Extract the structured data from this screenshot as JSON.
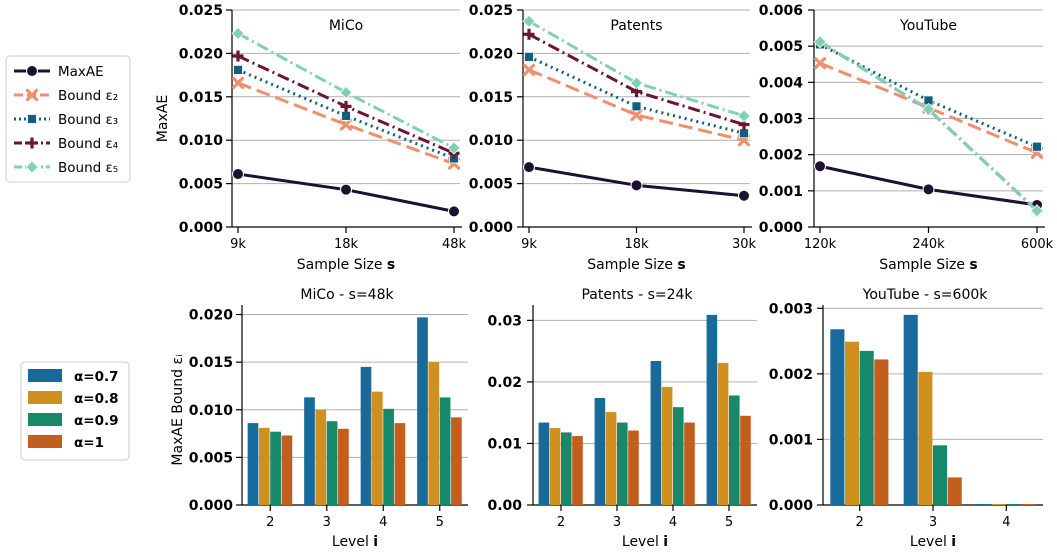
{
  "line_legend": [
    {
      "label": "MaxAE",
      "color": "#1d1130",
      "marker": "circle",
      "dash": ""
    },
    {
      "label": "Bound ε₂",
      "color": "#f08f6e",
      "marker": "x",
      "dash": "14,6"
    },
    {
      "label": "Bound ε₃",
      "color": "#115f7c",
      "marker": "square",
      "dash": "2,4"
    },
    {
      "label": "Bound ε₄",
      "color": "#6c1531",
      "marker": "plus",
      "dash": "12,4,2,4"
    },
    {
      "label": "Bound ε₅",
      "color": "#7fd1b2",
      "marker": "diamond",
      "dash": "12,4,2,4"
    }
  ],
  "bar_legend": [
    {
      "label": "α=0.7",
      "color": "#186a9a"
    },
    {
      "label": "α=0.8",
      "color": "#cf9020"
    },
    {
      "label": "α=0.9",
      "color": "#16896a"
    },
    {
      "label": "α=1",
      "color": "#c15f1f"
    }
  ],
  "chart_data": [
    {
      "type": "line",
      "title": "MiCo",
      "xlabel": "Sample Size s",
      "ylabel": "MaxAE",
      "categories": [
        "9k",
        "18k",
        "48k"
      ],
      "ylim": [
        0,
        0.025
      ],
      "yticks": [
        "0.000",
        "0.005",
        "0.010",
        "0.015",
        "0.020",
        "0.025"
      ],
      "series": [
        {
          "name": "MaxAE",
          "values": [
            0.0061,
            0.0043,
            0.0018
          ]
        },
        {
          "name": "Bound ε₂",
          "values": [
            0.0166,
            0.0118,
            0.0073
          ]
        },
        {
          "name": "Bound ε₃",
          "values": [
            0.0181,
            0.0128,
            0.0079
          ]
        },
        {
          "name": "Bound ε₄",
          "values": [
            0.0197,
            0.0139,
            0.0085
          ]
        },
        {
          "name": "Bound ε₅",
          "values": [
            0.0223,
            0.0155,
            0.0091
          ]
        }
      ]
    },
    {
      "type": "line",
      "title": "Patents",
      "xlabel": "Sample Size s",
      "ylabel": "",
      "categories": [
        "9k",
        "18k",
        "30k"
      ],
      "ylim": [
        0,
        0.025
      ],
      "yticks": [
        "0.000",
        "0.005",
        "0.010",
        "0.015",
        "0.020",
        "0.025"
      ],
      "series": [
        {
          "name": "MaxAE",
          "values": [
            0.0069,
            0.0048,
            0.0036
          ]
        },
        {
          "name": "Bound ε₂",
          "values": [
            0.0181,
            0.0129,
            0.01
          ]
        },
        {
          "name": "Bound ε₃",
          "values": [
            0.0196,
            0.0139,
            0.0108
          ]
        },
        {
          "name": "Bound ε₄",
          "values": [
            0.0222,
            0.0156,
            0.0118
          ]
        },
        {
          "name": "Bound ε₅",
          "values": [
            0.0237,
            0.0166,
            0.0128
          ]
        }
      ]
    },
    {
      "type": "line",
      "title": "YouTube",
      "xlabel": "Sample Size s",
      "ylabel": "",
      "categories": [
        "120k",
        "240k",
        "600k"
      ],
      "ylim": [
        0,
        0.006
      ],
      "yticks": [
        "0.000",
        "0.001",
        "0.002",
        "0.003",
        "0.004",
        "0.005",
        "0.006"
      ],
      "series": [
        {
          "name": "MaxAE",
          "values": [
            0.00168,
            0.00104,
            0.00061
          ]
        },
        {
          "name": "Bound ε₂",
          "values": [
            0.00453,
            0.0033,
            0.00205
          ]
        },
        {
          "name": "Bound ε₃",
          "values": [
            0.00505,
            0.0035,
            0.00222
          ]
        },
        {
          "name": "Bound ε₄",
          "values": [
            0.00512,
            0.00325,
            0.00045
          ]
        },
        {
          "name": "Bound ε₅",
          "values": [
            0.00512,
            0.00325,
            0.00045
          ]
        }
      ]
    },
    {
      "type": "bar",
      "title": "MiCo - s=48k",
      "xlabel": "Level i",
      "ylabel": "MaxAE Bound εᵢ",
      "categories": [
        "2",
        "3",
        "4",
        "5"
      ],
      "ylim": [
        0,
        0.021
      ],
      "yticks": [
        "0.000",
        "0.005",
        "0.010",
        "0.015",
        "0.020"
      ],
      "series": [
        {
          "name": "α=0.7",
          "values": [
            0.0086,
            0.0113,
            0.0145,
            0.0197
          ]
        },
        {
          "name": "α=0.8",
          "values": [
            0.0081,
            0.01,
            0.0119,
            0.015
          ]
        },
        {
          "name": "α=0.9",
          "values": [
            0.0077,
            0.0088,
            0.0101,
            0.0113
          ]
        },
        {
          "name": "α=1",
          "values": [
            0.0073,
            0.008,
            0.0086,
            0.0092
          ]
        }
      ]
    },
    {
      "type": "bar",
      "title": "Patents - s=24k",
      "xlabel": "Level i",
      "ylabel": "",
      "categories": [
        "2",
        "3",
        "4",
        "5"
      ],
      "ylim": [
        0,
        0.0325
      ],
      "yticks": [
        "0.00",
        "0.01",
        "0.02",
        "0.03"
      ],
      "series": [
        {
          "name": "α=0.7",
          "values": [
            0.0134,
            0.0174,
            0.0234,
            0.0309
          ]
        },
        {
          "name": "α=0.8",
          "values": [
            0.0125,
            0.0151,
            0.0192,
            0.0231
          ]
        },
        {
          "name": "α=0.9",
          "values": [
            0.0118,
            0.0134,
            0.0159,
            0.0178
          ]
        },
        {
          "name": "α=1",
          "values": [
            0.0112,
            0.0121,
            0.0134,
            0.0145
          ]
        }
      ]
    },
    {
      "type": "bar",
      "title": "YouTube - s=600k",
      "xlabel": "Level i",
      "ylabel": "",
      "categories": [
        "2",
        "3",
        "4"
      ],
      "ylim": [
        0,
        0.00305
      ],
      "yticks": [
        "0.000",
        "0.001",
        "0.002",
        "0.003"
      ],
      "series": [
        {
          "name": "α=0.7",
          "values": [
            0.00268,
            0.0029,
            1e-05
          ]
        },
        {
          "name": "α=0.8",
          "values": [
            0.00249,
            0.00203,
            1e-05
          ]
        },
        {
          "name": "α=0.9",
          "values": [
            0.00235,
            0.00091,
            1e-05
          ]
        },
        {
          "name": "α=1",
          "values": [
            0.00222,
            0.00042,
            1e-05
          ]
        }
      ]
    }
  ]
}
